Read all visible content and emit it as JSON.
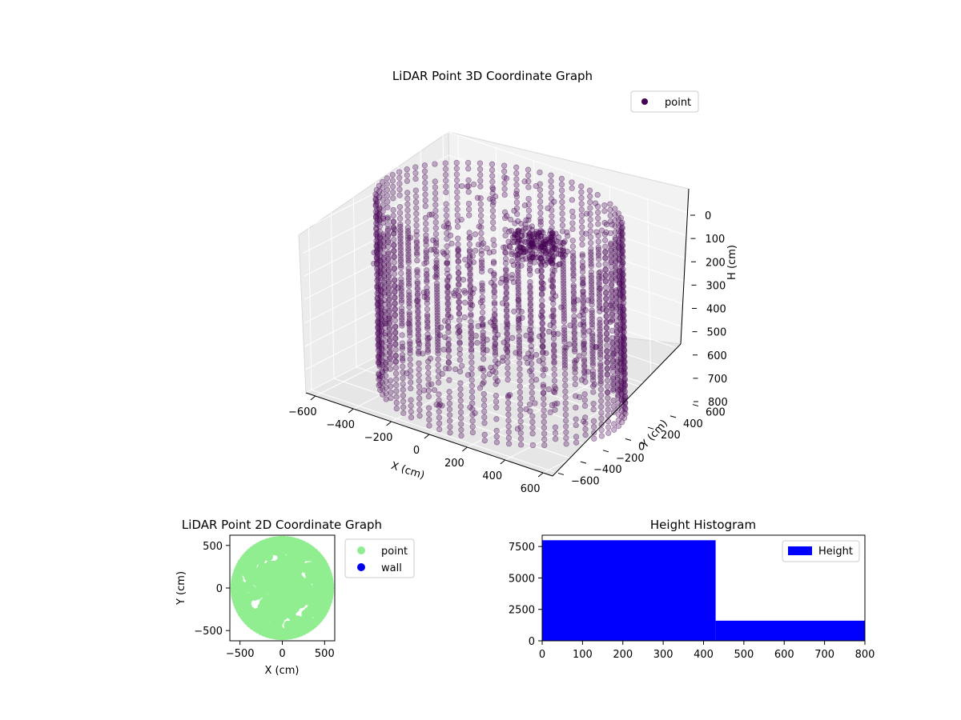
{
  "chart_data": [
    {
      "type": "scatter",
      "projection": "3d",
      "title": "LiDAR Point 3D Coordinate Graph",
      "xlabel": "X (cm)",
      "ylabel": "Y (cm)",
      "zlabel": "H (cm)",
      "xlim": [
        -650,
        650
      ],
      "ylim": [
        -650,
        650
      ],
      "zlim": [
        800,
        0
      ],
      "z_inverted": true,
      "x_ticks": [
        -600,
        -400,
        -200,
        0,
        200,
        400,
        600
      ],
      "y_ticks": [
        -600,
        -400,
        -200,
        0,
        200,
        400,
        600
      ],
      "z_ticks": [
        0,
        100,
        200,
        300,
        400,
        500,
        600,
        700,
        800
      ],
      "legend": [
        "point"
      ],
      "legend_position": "top-right",
      "grid": true,
      "marker_color": "#440154",
      "description_series": [
        {
          "name": "point",
          "shape": "cylindrical wall",
          "radius": 560,
          "h_range": [
            0,
            800
          ]
        }
      ]
    },
    {
      "type": "scatter",
      "title": "LiDAR Point 2D Coordinate Graph",
      "xlabel": "X (cm)",
      "ylabel": "Y (cm)",
      "xlim": [
        -620,
        620
      ],
      "ylim": [
        -620,
        620
      ],
      "x_ticks": [
        -500,
        0,
        500
      ],
      "y_ticks": [
        -500,
        0,
        500
      ],
      "legend_position": "outside-right",
      "series": [
        {
          "name": "point",
          "color": "#90ee90"
        },
        {
          "name": "wall",
          "color": "#0000ee"
        }
      ]
    },
    {
      "type": "bar",
      "subtype": "histogram",
      "title": "Height Histogram",
      "xlabel": "",
      "ylabel": "",
      "xlim": [
        0,
        800
      ],
      "ylim": [
        0,
        8400
      ],
      "x_ticks": [
        0,
        100,
        200,
        300,
        400,
        500,
        600,
        700,
        800
      ],
      "y_ticks": [
        0,
        2500,
        5000,
        7500
      ],
      "bins": [
        {
          "start": 0,
          "end": 430,
          "count": 8000
        },
        {
          "start": 430,
          "end": 800,
          "count": 1600
        }
      ],
      "legend": [
        "Height"
      ],
      "legend_position": "top-right",
      "color": "#0000ff"
    }
  ]
}
